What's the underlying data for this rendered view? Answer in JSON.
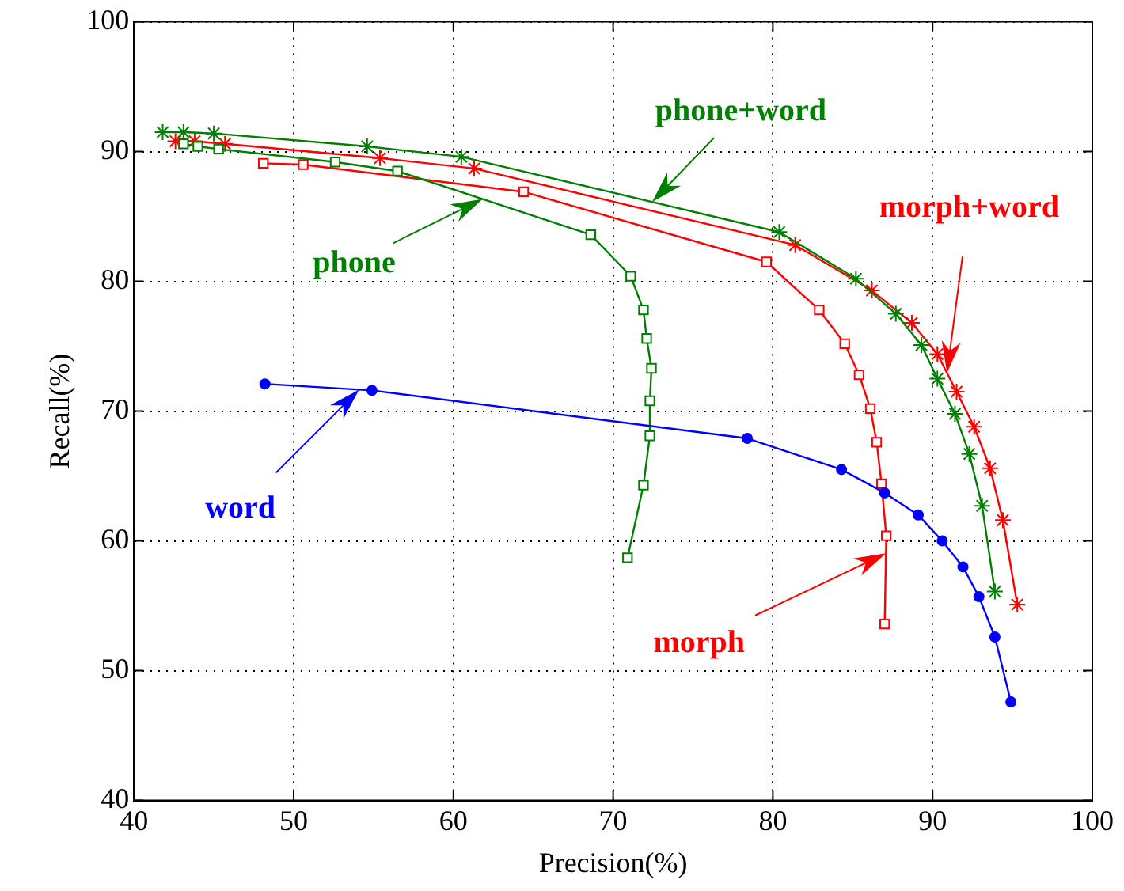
{
  "chart_data": {
    "type": "line",
    "xlabel": "Precision(%)",
    "ylabel": "Recall(%)",
    "xlim": [
      40,
      100
    ],
    "xticks": [
      40,
      50,
      60,
      70,
      80,
      90,
      100
    ],
    "ylim": [
      40,
      100
    ],
    "yticks": [
      40,
      50,
      60,
      70,
      80,
      90,
      100
    ],
    "grid": true,
    "line_style": "solid",
    "series": [
      {
        "name": "word",
        "color": "#0000ff",
        "marker": "circle",
        "x": [
          48.2,
          54.9,
          78.4,
          84.3,
          87.0,
          89.1,
          90.6,
          91.9,
          92.9,
          93.9,
          94.9
        ],
        "values": [
          72.1,
          71.6,
          67.9,
          65.5,
          63.7,
          62.0,
          60.0,
          58.0,
          55.7,
          52.6,
          47.6
        ]
      },
      {
        "name": "phone",
        "color": "#008000",
        "marker": "square",
        "x": [
          43.1,
          44.0,
          45.3,
          52.6,
          56.5,
          68.6,
          71.1,
          71.9,
          72.1,
          72.4,
          72.3,
          72.3,
          71.9,
          70.9
        ],
        "values": [
          90.6,
          90.4,
          90.2,
          89.2,
          88.5,
          83.6,
          80.4,
          77.8,
          75.6,
          73.3,
          70.8,
          68.1,
          64.3,
          58.7
        ]
      },
      {
        "name": "morph",
        "color": "#ff0000",
        "marker": "square",
        "x": [
          48.1,
          50.6,
          64.4,
          79.6,
          82.9,
          84.5,
          85.4,
          86.1,
          86.5,
          86.8,
          87.1,
          87.0
        ],
        "values": [
          89.1,
          89.0,
          86.9,
          81.5,
          77.8,
          75.2,
          72.8,
          70.2,
          67.6,
          64.4,
          60.4,
          53.6
        ]
      },
      {
        "name": "phone+word",
        "color": "#008000",
        "marker": "cross",
        "x": [
          41.8,
          43.1,
          45.0,
          54.6,
          60.5,
          80.4,
          85.2,
          87.7,
          89.3,
          90.3,
          91.4,
          92.3,
          93.1,
          93.9
        ],
        "values": [
          91.5,
          91.5,
          91.4,
          90.4,
          89.6,
          83.8,
          80.2,
          77.5,
          75.1,
          72.5,
          69.8,
          66.7,
          62.7,
          56.1
        ]
      },
      {
        "name": "morph+word",
        "color": "#ff0000",
        "marker": "cross",
        "x": [
          42.6,
          43.8,
          45.7,
          55.4,
          61.3,
          81.4,
          86.2,
          88.7,
          90.3,
          91.5,
          92.6,
          93.6,
          94.4,
          95.3
        ],
        "values": [
          90.8,
          90.8,
          90.6,
          89.5,
          88.7,
          82.8,
          79.3,
          76.8,
          74.4,
          71.5,
          68.8,
          65.6,
          61.6,
          55.1
        ]
      }
    ]
  }
}
